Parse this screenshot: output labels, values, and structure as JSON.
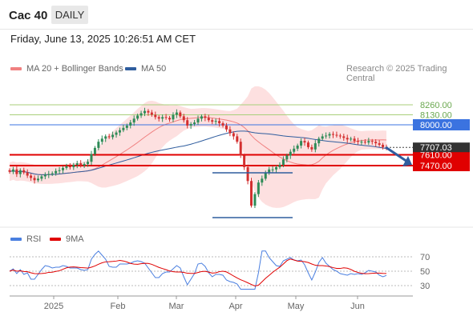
{
  "header": {
    "title": "Cac 40",
    "timeframe": "DAILY"
  },
  "timestamp": "Friday, June 13, 2025 10:26:51 AM CET",
  "legend": {
    "ma20": {
      "label": "MA 20 + Bollinger Bands",
      "color": "#f08080"
    },
    "ma50": {
      "label": "MA 50",
      "color": "#2f5d9e"
    },
    "rsi": {
      "label": "RSI",
      "color": "#4a7fe0"
    },
    "rsi_ma": {
      "label": "9MA",
      "color": "#e00000"
    }
  },
  "credit": "Research © 2025 Trading Central",
  "chart_data": [
    {
      "type": "candlestick",
      "title": "Cac 40",
      "x_labels": [
        "2025",
        "Feb",
        "Mar",
        "Apr",
        "May",
        "Jun"
      ],
      "current_price": "7707.03",
      "levels": [
        {
          "value": "8260.00",
          "kind": "resistance",
          "color": "#a8cf7a"
        },
        {
          "value": "8130.00",
          "kind": "resistance",
          "color": "#a8cf7a"
        },
        {
          "value": "8000.00",
          "kind": "pivot",
          "color": "#3b73e0"
        },
        {
          "value": "7610.00",
          "kind": "support",
          "color": "#e00000"
        },
        {
          "value": "7470.00",
          "kind": "support",
          "color": "#e00000"
        }
      ],
      "closes": [
        7390,
        7420,
        7360,
        7410,
        7380,
        7340,
        7310,
        7280,
        7300,
        7330,
        7350,
        7360,
        7370,
        7400,
        7410,
        7440,
        7460,
        7450,
        7480,
        7500,
        7470,
        7490,
        7520,
        7620,
        7700,
        7780,
        7820,
        7850,
        7840,
        7870,
        7900,
        7930,
        7960,
        7990,
        8030,
        8080,
        8120,
        8150,
        8180,
        8160,
        8130,
        8100,
        8080,
        8100,
        8090,
        8070,
        8130,
        8160,
        8110,
        8060,
        7990,
        8010,
        8030,
        8080,
        8110,
        8090,
        8060,
        8040,
        8050,
        8020,
        7990,
        7940,
        7890,
        7850,
        7780,
        7600,
        7450,
        7270,
        6950,
        7100,
        7250,
        7300,
        7380,
        7420,
        7420,
        7450,
        7480,
        7550,
        7600,
        7650,
        7690,
        7730,
        7790,
        7770,
        7710,
        7680,
        7760,
        7820,
        7850,
        7860,
        7880,
        7870,
        7860,
        7850,
        7830,
        7810,
        7820,
        7790,
        7780,
        7780,
        7770,
        7790,
        7780,
        7760,
        7740,
        7710,
        7707
      ],
      "ma50_y": 0,
      "rsi_levels": [
        70,
        50,
        30
      ]
    }
  ]
}
